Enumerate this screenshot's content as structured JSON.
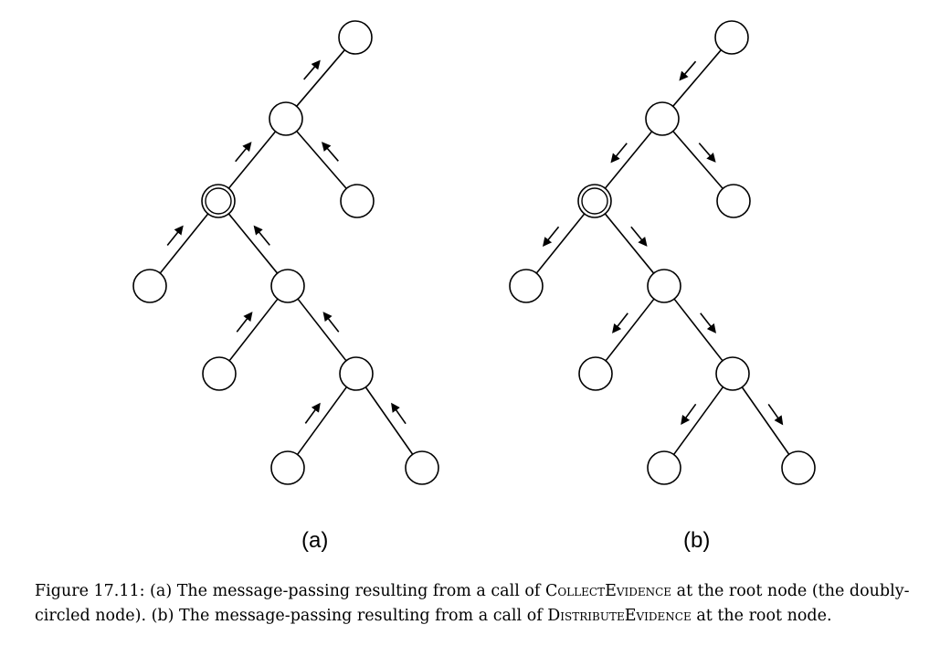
{
  "panels": [
    {
      "id": "a",
      "label": "(a)",
      "direction": "collect"
    },
    {
      "id": "b",
      "label": "(b)",
      "direction": "distribute"
    }
  ],
  "tree": {
    "root_node": "n2",
    "edges": [
      [
        "n0",
        "n1"
      ],
      [
        "n1",
        "n2"
      ],
      [
        "n1",
        "n3"
      ],
      [
        "n2",
        "n4"
      ],
      [
        "n2",
        "n5"
      ],
      [
        "n5",
        "n6"
      ],
      [
        "n5",
        "n7"
      ],
      [
        "n7",
        "n8"
      ],
      [
        "n7",
        "n9"
      ]
    ],
    "doubly_circled": "n2"
  },
  "caption": {
    "prefix": "Figure 17.11: (a) The message-passing resulting from a call of ",
    "collect": "CollectEvidence",
    "middle": " at the root node (the doubly-circled node). (b) The message-passing resulting from a call of ",
    "distribute": "DistributeEvidence",
    "suffix": " at the root node."
  },
  "colors": {
    "stroke": "#000000",
    "fill": "#ffffff"
  }
}
